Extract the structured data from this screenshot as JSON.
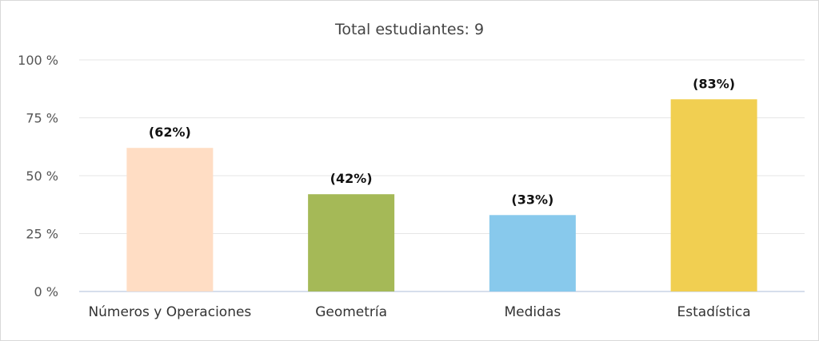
{
  "chart_data": {
    "type": "bar",
    "title": "Total estudiantes: 9",
    "categories": [
      "Números y Operaciones",
      "Geometría",
      "Medidas",
      "Estadística"
    ],
    "values": [
      62,
      42,
      33,
      83
    ],
    "data_labels": [
      "(62%)",
      "(42%)",
      "(33%)",
      "(83%)"
    ],
    "colors": [
      "#FFDDC4",
      "#A5B957",
      "#88C9EC",
      "#F1CF51"
    ],
    "ylim": [
      0,
      100
    ],
    "yticks": [
      0,
      25,
      50,
      75,
      100
    ],
    "ytick_labels": [
      "0 %",
      "25 %",
      "50 %",
      "75 %",
      "100 %"
    ],
    "grid": true,
    "legend": "none"
  }
}
